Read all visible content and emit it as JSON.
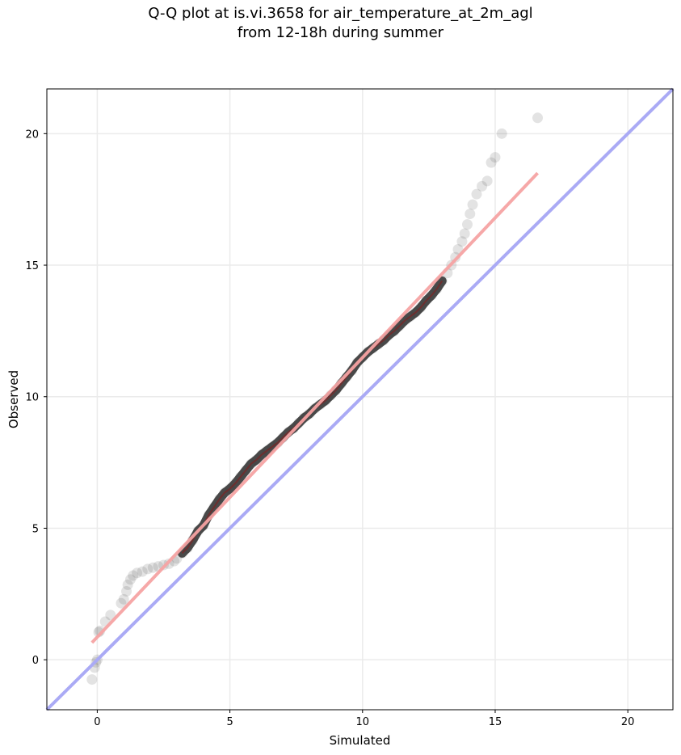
{
  "chart_data": {
    "type": "scatter",
    "title": "Q-Q plot at is.vi.3658 for air_temperature_at_2m_agl",
    "subtitle": "from 12-18h during summer",
    "xlabel": "Simulated",
    "ylabel": "Observed",
    "xlim": [
      -1.9,
      21.7
    ],
    "ylim": [
      -1.9,
      21.7
    ],
    "xticks": [
      0,
      5,
      10,
      15,
      20
    ],
    "yticks": [
      0,
      5,
      10,
      15,
      20
    ],
    "xtick_labels": [
      "0",
      "5",
      "10",
      "15",
      "20"
    ],
    "ytick_labels": [
      "0",
      "5",
      "10",
      "15",
      "20"
    ],
    "grid": true,
    "reference_line": {
      "x": [
        -1.9,
        21.7
      ],
      "y": [
        -1.9,
        21.7
      ],
      "color": "#aaaaf5"
    },
    "fit_line": {
      "x": [
        -0.2,
        16.6
      ],
      "y": [
        0.65,
        18.5
      ],
      "color": "#f5a3a3"
    },
    "colors": {
      "points": "#3c3c3c",
      "grid": "#ebebeb",
      "highlight": "#8b1a1a"
    },
    "points": {
      "x": [
        -0.2,
        -0.1,
        -0.05,
        0.0,
        0.05,
        0.1,
        0.3,
        0.5,
        0.9,
        1.0,
        1.1,
        1.15,
        1.25,
        1.35,
        1.5,
        1.7,
        1.9,
        2.1,
        2.3,
        2.5,
        2.7,
        2.9,
        3.0,
        3.2,
        3.4,
        3.6,
        3.8,
        4.0,
        4.2,
        4.4,
        4.6,
        4.8,
        5.0,
        5.2,
        5.4,
        5.6,
        5.8,
        6.0,
        6.2,
        6.4,
        6.6,
        6.8,
        7.0,
        7.2,
        7.4,
        7.6,
        7.8,
        8.0,
        8.2,
        8.4,
        8.6,
        8.8,
        9.0,
        9.2,
        9.4,
        9.6,
        9.8,
        10.0,
        10.2,
        10.4,
        10.6,
        10.8,
        11.0,
        11.2,
        11.4,
        11.6,
        11.8,
        12.0,
        12.2,
        12.4,
        12.6,
        12.8,
        13.0,
        13.2,
        13.35,
        13.5,
        13.6,
        13.75,
        13.85,
        13.95,
        14.05,
        14.15,
        14.3,
        14.5,
        14.7,
        14.85,
        15.0,
        15.25,
        16.6
      ],
      "y": [
        -0.75,
        -0.3,
        -0.1,
        0.0,
        1.05,
        1.1,
        1.45,
        1.7,
        2.15,
        2.3,
        2.6,
        2.85,
        3.05,
        3.2,
        3.3,
        3.35,
        3.45,
        3.5,
        3.55,
        3.6,
        3.65,
        3.75,
        3.85,
        4.05,
        4.25,
        4.55,
        4.9,
        5.1,
        5.5,
        5.8,
        6.1,
        6.35,
        6.5,
        6.7,
        6.95,
        7.2,
        7.45,
        7.6,
        7.8,
        7.95,
        8.1,
        8.25,
        8.45,
        8.65,
        8.8,
        9.0,
        9.2,
        9.35,
        9.55,
        9.7,
        9.85,
        10.05,
        10.25,
        10.5,
        10.75,
        11.0,
        11.3,
        11.5,
        11.7,
        11.85,
        12.0,
        12.15,
        12.35,
        12.5,
        12.7,
        12.9,
        13.05,
        13.2,
        13.4,
        13.65,
        13.85,
        14.1,
        14.4,
        14.7,
        15.0,
        15.3,
        15.6,
        15.9,
        16.2,
        16.55,
        16.95,
        17.3,
        17.7,
        18.0,
        18.2,
        18.9,
        19.1,
        20.0,
        20.6
      ]
    }
  }
}
